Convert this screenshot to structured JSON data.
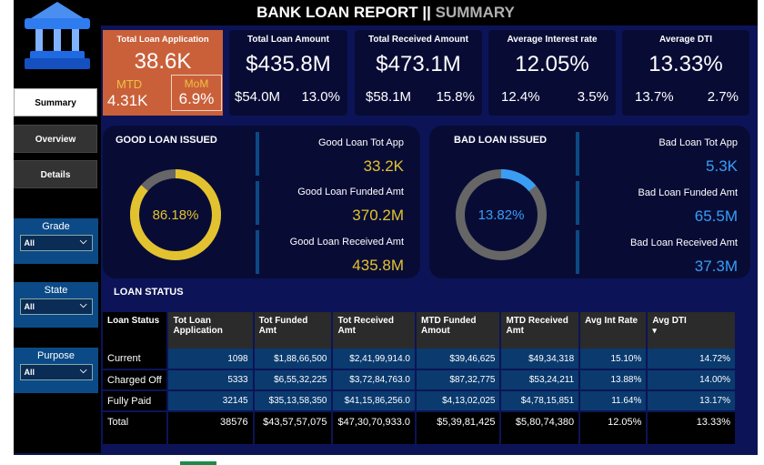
{
  "header": {
    "title": "BANK LOAN REPORT ||",
    "subtitle": "SUMMARY"
  },
  "nav": [
    {
      "label": "Summary",
      "active": true
    },
    {
      "label": "Overview"
    },
    {
      "label": "Details"
    }
  ],
  "filters": [
    {
      "label": "Grade",
      "value": "All"
    },
    {
      "label": "State",
      "value": "All"
    },
    {
      "label": "Purpose",
      "value": "All"
    }
  ],
  "kpis": {
    "total_app": {
      "title": "Total Loan Application",
      "value": "38.6K",
      "mtd_label": "MTD",
      "mtd": "4.31K",
      "mom_label": "MoM",
      "mom": "6.9%"
    },
    "cards": [
      {
        "title": "Total Loan Amount",
        "value": "$435.8M",
        "mtd": "$54.0M",
        "mom": "13.0%"
      },
      {
        "title": "Total Received Amount",
        "value": "$473.1M",
        "mtd": "$58.1M",
        "mom": "15.8%"
      },
      {
        "title": "Average Interest rate",
        "value": "12.05%",
        "mtd": "12.4%",
        "mom": "3.5%"
      },
      {
        "title": "Average DTI",
        "value": "13.33%",
        "mtd": "13.7%",
        "mom": "2.7%"
      }
    ]
  },
  "good": {
    "title": "GOOD LOAN ISSUED",
    "pct_label": "86.18%",
    "pct": 86.18,
    "color": "#e3c22f",
    "items": [
      {
        "label": "Good Loan Tot App",
        "value": "33.2K"
      },
      {
        "label": "Good Loan Funded Amt",
        "value": "370.2M"
      },
      {
        "label": "Good Loan Received Amt",
        "value": "435.8M"
      }
    ]
  },
  "bad": {
    "title": "BAD LOAN ISSUED",
    "pct_label": "13.82%",
    "pct": 13.82,
    "color": "#3a9cf5",
    "items": [
      {
        "label": "Bad Loan Tot App",
        "value": "5.3K"
      },
      {
        "label": "Bad Loan Funded Amt",
        "value": "65.5M"
      },
      {
        "label": "Bad Loan Received Amt",
        "value": "37.3M"
      }
    ]
  },
  "status": {
    "title": "LOAN STATUS",
    "columns": [
      "Loan Status",
      "Tot Loan Application",
      "Tot Funded Amt",
      "Tot Received Amt",
      "MTD Funded Amout",
      "MTD Received Amt",
      "Avg Int Rate",
      "Avg DTI"
    ],
    "sort_icon": "▾",
    "rows": [
      [
        "Current",
        "1098",
        "$1,88,66,500",
        "$2,41,99,914.0",
        "$39,46,625",
        "$49,34,318",
        "15.10%",
        "14.72%"
      ],
      [
        "Charged Off",
        "5333",
        "$6,55,32,225",
        "$3,72,84,763.0",
        "$87,32,775",
        "$53,24,211",
        "13.88%",
        "14.00%"
      ],
      [
        "Fully Paid",
        "32145",
        "$35,13,58,350",
        "$41,15,86,256.0",
        "$4,13,02,025",
        "$4,78,15,851",
        "11.64%",
        "13.17%"
      ],
      [
        "Total",
        "38576",
        "$43,57,57,075",
        "$47,30,70,933.0",
        "$5,39,81,425",
        "$5,80,74,380",
        "12.05%",
        "13.33%"
      ]
    ]
  }
}
